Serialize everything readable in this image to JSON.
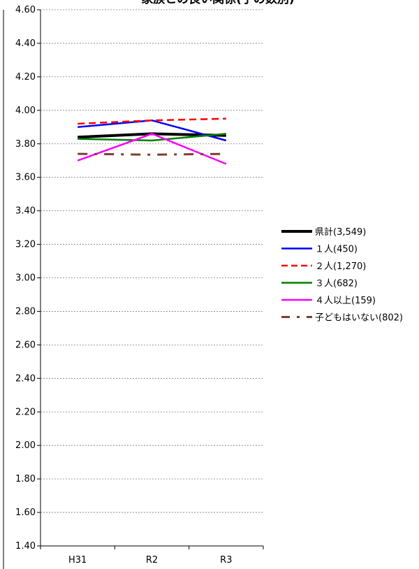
{
  "chart_data": {
    "type": "line",
    "title": "家族との良い関係(子の数別)",
    "xlabel": "",
    "ylabel": "",
    "categories": [
      "H31",
      "R2",
      "R3"
    ],
    "ylim": [
      1.4,
      4.6
    ],
    "yticks": [
      "1.40",
      "1.60",
      "1.80",
      "2.00",
      "2.20",
      "2.40",
      "2.60",
      "2.80",
      "3.00",
      "3.20",
      "3.40",
      "3.60",
      "3.80",
      "4.00",
      "4.20",
      "4.40",
      "4.60"
    ],
    "grid": true,
    "legend_position": "right",
    "series": [
      {
        "name": "県計(3,549)",
        "values": [
          3.84,
          3.86,
          3.85
        ],
        "color": "#000000",
        "dash": "solid",
        "width": 4
      },
      {
        "name": "１人(450)",
        "values": [
          3.9,
          3.94,
          3.82
        ],
        "color": "#0000ff",
        "dash": "solid",
        "width": 2.5
      },
      {
        "name": "２人(1,270)",
        "values": [
          3.92,
          3.94,
          3.95
        ],
        "color": "#ff0000",
        "dash": "dash",
        "width": 2.5
      },
      {
        "name": "３人(682)",
        "values": [
          3.83,
          3.82,
          3.86
        ],
        "color": "#008000",
        "dash": "solid",
        "width": 2.5
      },
      {
        "name": "４人以上(159)",
        "values": [
          3.7,
          3.86,
          3.68
        ],
        "color": "#ff00ff",
        "dash": "solid",
        "width": 2.5
      },
      {
        "name": "子どもはいない(802)",
        "values": [
          3.74,
          3.735,
          3.74
        ],
        "color": "#7b3f2f",
        "dash": "dashdot",
        "width": 3
      }
    ]
  }
}
